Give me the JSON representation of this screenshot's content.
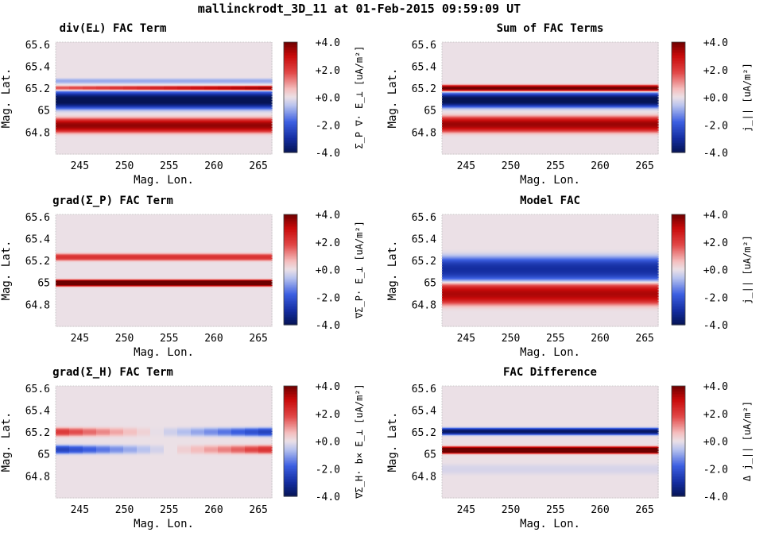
{
  "figure": {
    "title": "mallinckrodt_3D_11 at 01-Feb-2015 09:59:09 UT"
  },
  "colors": {
    "neutral": "#ebe0e6",
    "blue_dark": "#0b2a8a",
    "blue": "#2f55d6",
    "red": "#d31616",
    "red_dark": "#6e0000"
  },
  "chart_data": [
    {
      "type": "heatmap",
      "id": "div_e",
      "title": "div(E⊥) FAC Term",
      "xlabel": "Mag. Lon.",
      "ylabel": "Mag. Lat.",
      "xlim": [
        242.3,
        266.5
      ],
      "ylim": [
        64.6,
        65.62
      ],
      "xticks": [
        "245",
        "250",
        "255",
        "260",
        "265"
      ],
      "yticks": [
        "65.6",
        "65.4",
        "65.2",
        "65",
        "64.8"
      ],
      "clim": [
        -4,
        4
      ],
      "colorbar_ticks": [
        "+4.0",
        "+2.0",
        "+0.0",
        "-2.0",
        "-4.0"
      ],
      "colorbar_label": "Σ_P ∇· E_⊥ [uA/m²]",
      "bands": [
        {
          "lat": 65.265,
          "width": 0.018,
          "amp": -0.9,
          "taper": "none"
        },
        {
          "lat": 65.2,
          "width": 0.016,
          "amp": 1.8,
          "ramp_to": 3.8
        },
        {
          "lat": 65.09,
          "width": 0.06,
          "amp": -4.2,
          "taper": "none"
        },
        {
          "lat": 64.86,
          "width": 0.05,
          "amp": 3.6,
          "taper": "none"
        }
      ]
    },
    {
      "type": "heatmap",
      "id": "sum_fac",
      "title": "Sum of FAC Terms",
      "xlabel": "Mag. Lon.",
      "ylabel": "Mag. Lat.",
      "xlim": [
        242.3,
        266.5
      ],
      "ylim": [
        64.6,
        65.62
      ],
      "xticks": [
        "245",
        "250",
        "255",
        "260",
        "265"
      ],
      "yticks": [
        "65.6",
        "65.4",
        "65.2",
        "65",
        "64.8"
      ],
      "clim": [
        -4,
        4
      ],
      "colorbar_ticks": [
        "+4.0",
        "+2.0",
        "+0.0",
        "-2.0",
        "-4.0"
      ],
      "colorbar_label": "j_|| [uA/m²]",
      "bands": [
        {
          "lat": 65.2,
          "width": 0.022,
          "amp": 4.0,
          "taper": "none"
        },
        {
          "lat": 65.09,
          "width": 0.05,
          "amp": -4.2,
          "taper": "none"
        },
        {
          "lat": 64.87,
          "width": 0.055,
          "amp": 3.5,
          "taper": "none"
        }
      ]
    },
    {
      "type": "heatmap",
      "id": "grad_p",
      "title": "grad(Σ_P) FAC Term",
      "xlabel": "Mag. Lon.",
      "ylabel": "Mag. Lat.",
      "xlim": [
        242.3,
        266.5
      ],
      "ylim": [
        64.6,
        65.62
      ],
      "xticks": [
        "245",
        "250",
        "255",
        "260",
        "265"
      ],
      "yticks": [
        "65.6",
        "65.4",
        "65.2",
        "65",
        "64.8"
      ],
      "clim": [
        -4,
        4
      ],
      "colorbar_ticks": [
        "+4.0",
        "+2.0",
        "+0.0",
        "-2.0",
        "-4.0"
      ],
      "colorbar_label": "∇Σ_P· E_⊥ [uA/m²]",
      "bands": [
        {
          "lat": 65.23,
          "width": 0.025,
          "amp": 2.2,
          "taper": "none"
        },
        {
          "lat": 64.995,
          "width": 0.022,
          "amp": 5.5,
          "taper": "none"
        }
      ]
    },
    {
      "type": "heatmap",
      "id": "model_fac",
      "title": "Model FAC",
      "xlabel": "Mag. Lon.",
      "ylabel": "Mag. Lat.",
      "xlim": [
        242.3,
        266.5
      ],
      "ylim": [
        64.6,
        65.62
      ],
      "xticks": [
        "245",
        "250",
        "255",
        "260",
        "265"
      ],
      "yticks": [
        "65.6",
        "65.4",
        "65.2",
        "65",
        "64.8"
      ],
      "clim": [
        -4,
        4
      ],
      "colorbar_ticks": [
        "+4.0",
        "+2.0",
        "+0.0",
        "-2.0",
        "-4.0"
      ],
      "colorbar_label": "j_|| [uA/m²]",
      "bands": [
        {
          "lat": 65.12,
          "width": 0.085,
          "amp": -3.0,
          "taper": "none"
        },
        {
          "lat": 64.895,
          "width": 0.075,
          "amp": 3.3,
          "taper": "none"
        }
      ]
    },
    {
      "type": "heatmap",
      "id": "grad_h",
      "title": "grad(Σ_H) FAC Term",
      "xlabel": "Mag. Lon.",
      "ylabel": "Mag. Lat.",
      "xlim": [
        242.3,
        266.5
      ],
      "ylim": [
        64.6,
        65.62
      ],
      "xticks": [
        "245",
        "250",
        "255",
        "260",
        "265"
      ],
      "yticks": [
        "65.6",
        "65.4",
        "65.2",
        "65",
        "64.8"
      ],
      "clim": [
        -4,
        4
      ],
      "colorbar_ticks": [
        "+4.0",
        "+2.0",
        "+0.0",
        "-2.0",
        "-4.0"
      ],
      "colorbar_label": "∇Σ_H· b× E_⊥ [uA/m²]",
      "bands": [
        {
          "lat": 65.2,
          "width": 0.03,
          "amp": 2.2,
          "ramp_to": -2.6
        },
        {
          "lat": 65.04,
          "width": 0.03,
          "amp": -2.6,
          "ramp_to": 2.3
        }
      ]
    },
    {
      "type": "heatmap",
      "id": "fac_diff",
      "title": "FAC Difference",
      "xlabel": "Mag. Lon.",
      "ylabel": "Mag. Lat.",
      "xlim": [
        242.3,
        266.5
      ],
      "ylim": [
        64.6,
        65.62
      ],
      "xticks": [
        "245",
        "250",
        "255",
        "260",
        "265"
      ],
      "yticks": [
        "65.6",
        "65.4",
        "65.2",
        "65",
        "64.8"
      ],
      "clim": [
        -4,
        4
      ],
      "colorbar_ticks": [
        "+4.0",
        "+2.0",
        "+0.0",
        "-2.0",
        "-4.0"
      ],
      "colorbar_label": "Δ j_|| [uA/m²]",
      "bands": [
        {
          "lat": 65.205,
          "width": 0.024,
          "amp": -3.8,
          "taper": "none"
        },
        {
          "lat": 65.035,
          "width": 0.024,
          "amp": 5.2,
          "taper": "none"
        },
        {
          "lat": 64.86,
          "width": 0.035,
          "amp": -0.25,
          "taper": "none"
        }
      ]
    }
  ]
}
